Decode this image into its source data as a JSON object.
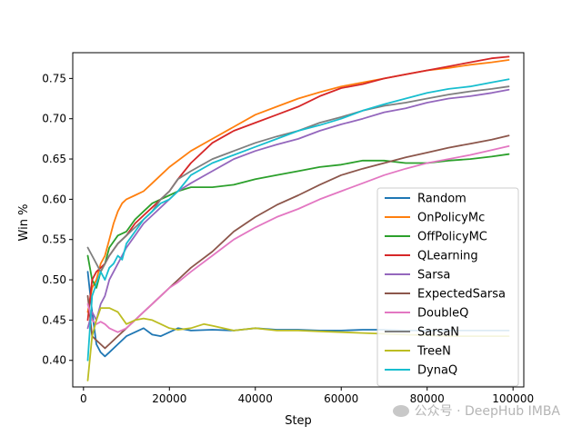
{
  "chart_data": {
    "type": "line",
    "xlabel": "Step",
    "ylabel": "Win %",
    "xlim": [
      -2500,
      102500
    ],
    "ylim": [
      0.367,
      0.782
    ],
    "xticks": [
      0,
      20000,
      40000,
      60000,
      80000,
      100000
    ],
    "yticks": [
      0.4,
      0.45,
      0.5,
      0.55,
      0.6,
      0.65,
      0.7,
      0.75
    ],
    "legend_position": "lower-right",
    "grid": false,
    "series": [
      {
        "name": "Random",
        "color": "#1f77b4",
        "x": [
          1000,
          2000,
          3000,
          4000,
          5000,
          6000,
          8000,
          10000,
          12000,
          14000,
          16000,
          18000,
          20000,
          22000,
          25000,
          30000,
          35000,
          40000,
          45000,
          50000,
          55000,
          60000,
          65000,
          70000,
          75000,
          80000,
          85000,
          90000,
          95000,
          99000
        ],
        "y": [
          0.51,
          0.46,
          0.42,
          0.41,
          0.405,
          0.41,
          0.42,
          0.43,
          0.435,
          0.44,
          0.432,
          0.43,
          0.435,
          0.44,
          0.437,
          0.438,
          0.437,
          0.44,
          0.438,
          0.438,
          0.437,
          0.437,
          0.438,
          0.438,
          0.437,
          0.437,
          0.437,
          0.437,
          0.437,
          0.437
        ]
      },
      {
        "name": "OnPolicyMc",
        "color": "#ff7f0e",
        "x": [
          1000,
          2000,
          3000,
          4000,
          5000,
          6000,
          7000,
          8000,
          9000,
          10000,
          12000,
          14000,
          16000,
          18000,
          20000,
          25000,
          30000,
          35000,
          40000,
          45000,
          50000,
          55000,
          60000,
          65000,
          70000,
          75000,
          80000,
          85000,
          90000,
          95000,
          99000
        ],
        "y": [
          0.46,
          0.49,
          0.5,
          0.52,
          0.53,
          0.55,
          0.57,
          0.585,
          0.595,
          0.6,
          0.605,
          0.61,
          0.62,
          0.63,
          0.64,
          0.66,
          0.675,
          0.69,
          0.705,
          0.715,
          0.725,
          0.733,
          0.74,
          0.745,
          0.75,
          0.755,
          0.76,
          0.763,
          0.767,
          0.77,
          0.773
        ]
      },
      {
        "name": "OffPolicyMC",
        "color": "#2ca02c",
        "x": [
          1000,
          2000,
          3000,
          4000,
          5000,
          6000,
          8000,
          10000,
          12000,
          14000,
          16000,
          18000,
          20000,
          22000,
          25000,
          30000,
          35000,
          40000,
          45000,
          50000,
          55000,
          60000,
          65000,
          70000,
          75000,
          80000,
          85000,
          90000,
          95000,
          99000
        ],
        "y": [
          0.53,
          0.5,
          0.49,
          0.51,
          0.52,
          0.54,
          0.555,
          0.56,
          0.575,
          0.585,
          0.595,
          0.6,
          0.605,
          0.61,
          0.615,
          0.615,
          0.618,
          0.625,
          0.63,
          0.635,
          0.64,
          0.643,
          0.648,
          0.648,
          0.645,
          0.645,
          0.648,
          0.65,
          0.653,
          0.656
        ]
      },
      {
        "name": "QLearning",
        "color": "#d62728",
        "x": [
          1000,
          2000,
          3000,
          4000,
          5000,
          6000,
          8000,
          10000,
          12000,
          14000,
          16000,
          18000,
          20000,
          22000,
          25000,
          30000,
          35000,
          40000,
          45000,
          50000,
          55000,
          60000,
          65000,
          70000,
          75000,
          80000,
          85000,
          90000,
          95000,
          99000
        ],
        "y": [
          0.45,
          0.5,
          0.51,
          0.515,
          0.52,
          0.53,
          0.545,
          0.555,
          0.57,
          0.58,
          0.59,
          0.6,
          0.61,
          0.625,
          0.645,
          0.67,
          0.685,
          0.695,
          0.705,
          0.715,
          0.728,
          0.738,
          0.743,
          0.75,
          0.755,
          0.76,
          0.765,
          0.77,
          0.775,
          0.777
        ]
      },
      {
        "name": "Sarsa",
        "color": "#9467bd",
        "x": [
          1000,
          2000,
          3000,
          4000,
          5000,
          6000,
          8000,
          10000,
          12000,
          14000,
          16000,
          18000,
          20000,
          22000,
          25000,
          30000,
          35000,
          40000,
          45000,
          50000,
          55000,
          60000,
          65000,
          70000,
          75000,
          80000,
          85000,
          90000,
          95000,
          99000
        ],
        "y": [
          0.44,
          0.46,
          0.45,
          0.47,
          0.48,
          0.5,
          0.52,
          0.54,
          0.555,
          0.57,
          0.58,
          0.59,
          0.6,
          0.61,
          0.62,
          0.635,
          0.65,
          0.66,
          0.668,
          0.675,
          0.685,
          0.693,
          0.7,
          0.708,
          0.713,
          0.72,
          0.725,
          0.728,
          0.732,
          0.736
        ]
      },
      {
        "name": "ExpectedSarsa",
        "color": "#8c564b",
        "x": [
          1000,
          2000,
          3000,
          4000,
          5000,
          6000,
          8000,
          10000,
          12000,
          14000,
          16000,
          18000,
          20000,
          22000,
          25000,
          30000,
          35000,
          40000,
          45000,
          50000,
          55000,
          60000,
          65000,
          70000,
          75000,
          80000,
          85000,
          90000,
          95000,
          99000
        ],
        "y": [
          0.48,
          0.43,
          0.425,
          0.42,
          0.415,
          0.42,
          0.43,
          0.44,
          0.45,
          0.46,
          0.47,
          0.48,
          0.49,
          0.5,
          0.515,
          0.535,
          0.56,
          0.578,
          0.593,
          0.605,
          0.618,
          0.63,
          0.638,
          0.645,
          0.652,
          0.658,
          0.664,
          0.669,
          0.674,
          0.679
        ]
      },
      {
        "name": "DoubleQ",
        "color": "#e377c2",
        "x": [
          1000,
          2000,
          3000,
          4000,
          5000,
          6000,
          8000,
          10000,
          12000,
          14000,
          16000,
          18000,
          20000,
          22000,
          25000,
          30000,
          35000,
          40000,
          45000,
          50000,
          55000,
          60000,
          65000,
          70000,
          75000,
          80000,
          85000,
          90000,
          95000,
          99000
        ],
        "y": [
          0.47,
          0.45,
          0.445,
          0.448,
          0.445,
          0.44,
          0.435,
          0.44,
          0.45,
          0.46,
          0.47,
          0.48,
          0.49,
          0.497,
          0.51,
          0.53,
          0.55,
          0.565,
          0.578,
          0.588,
          0.6,
          0.61,
          0.62,
          0.63,
          0.638,
          0.645,
          0.65,
          0.655,
          0.661,
          0.666
        ]
      },
      {
        "name": "SarsaN",
        "color": "#7f7f7f",
        "x": [
          1000,
          2000,
          3000,
          4000,
          5000,
          6000,
          8000,
          10000,
          12000,
          14000,
          16000,
          18000,
          20000,
          22000,
          25000,
          30000,
          35000,
          40000,
          45000,
          50000,
          55000,
          60000,
          65000,
          70000,
          75000,
          80000,
          85000,
          90000,
          95000,
          99000
        ],
        "y": [
          0.54,
          0.53,
          0.52,
          0.51,
          0.52,
          0.53,
          0.545,
          0.555,
          0.565,
          0.575,
          0.585,
          0.6,
          0.61,
          0.625,
          0.635,
          0.65,
          0.66,
          0.67,
          0.678,
          0.685,
          0.695,
          0.702,
          0.71,
          0.716,
          0.72,
          0.725,
          0.73,
          0.734,
          0.737,
          0.74
        ]
      },
      {
        "name": "TreeN",
        "color": "#bcbd22",
        "x": [
          1000,
          2000,
          3000,
          4000,
          5000,
          6000,
          8000,
          10000,
          12000,
          14000,
          16000,
          18000,
          20000,
          22000,
          25000,
          28000,
          30000,
          35000,
          40000,
          45000,
          50000,
          55000,
          60000,
          65000,
          70000,
          75000,
          80000,
          85000,
          90000,
          95000,
          99000
        ],
        "y": [
          0.375,
          0.43,
          0.45,
          0.465,
          0.465,
          0.465,
          0.46,
          0.445,
          0.45,
          0.452,
          0.45,
          0.445,
          0.44,
          0.438,
          0.44,
          0.445,
          0.443,
          0.437,
          0.44,
          0.437,
          0.437,
          0.436,
          0.435,
          0.434,
          0.433,
          0.432,
          0.431,
          0.43,
          0.43,
          0.43,
          0.43
        ]
      },
      {
        "name": "DynaQ",
        "color": "#17becf",
        "x": [
          1000,
          2000,
          3000,
          4000,
          5000,
          6000,
          7000,
          8000,
          9000,
          10000,
          12000,
          14000,
          16000,
          18000,
          20000,
          22000,
          25000,
          30000,
          35000,
          40000,
          45000,
          50000,
          55000,
          60000,
          65000,
          70000,
          75000,
          80000,
          85000,
          90000,
          95000,
          99000
        ],
        "y": [
          0.4,
          0.48,
          0.495,
          0.51,
          0.5,
          0.515,
          0.52,
          0.53,
          0.525,
          0.545,
          0.56,
          0.575,
          0.585,
          0.595,
          0.6,
          0.61,
          0.63,
          0.645,
          0.655,
          0.665,
          0.675,
          0.685,
          0.692,
          0.7,
          0.71,
          0.718,
          0.725,
          0.732,
          0.737,
          0.74,
          0.745,
          0.749
        ]
      }
    ]
  },
  "watermark": {
    "text": "公众号 · DeepHub IMBA"
  }
}
